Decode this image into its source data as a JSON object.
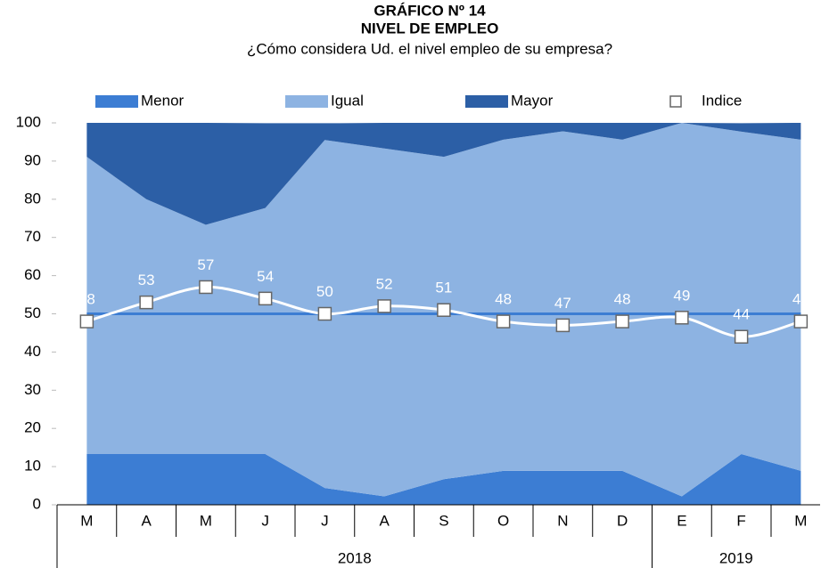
{
  "chart_data": {
    "type": "area",
    "stacked": true,
    "title": "GRÁFICO Nº 14",
    "subtitle": "NIVEL DE EMPLEO",
    "question": "¿Cómo considera Ud. el nivel empleo de su empresa?",
    "categories": [
      "M",
      "A",
      "M",
      "J",
      "J",
      "A",
      "S",
      "O",
      "N",
      "D",
      "E",
      "F",
      "M"
    ],
    "category_groups": [
      {
        "label": "2018",
        "span": 10
      },
      {
        "label": "2019",
        "span": 3
      }
    ],
    "series": [
      {
        "name": "Menor",
        "color": "#3c7dd3",
        "values": [
          13.3,
          13.3,
          13.3,
          13.3,
          4.4,
          2.2,
          6.7,
          8.9,
          8.9,
          8.9,
          2.2,
          13.3,
          8.9
        ]
      },
      {
        "name": "Igual",
        "color": "#8db3e2",
        "values": [
          77.8,
          66.7,
          60,
          64.4,
          91.1,
          91.1,
          84.4,
          86.7,
          88.9,
          86.7,
          97.8,
          84.4,
          86.7
        ]
      },
      {
        "name": "Mayor",
        "color": "#2c5fa6",
        "values": [
          8.9,
          20,
          26.7,
          22.2,
          4.4,
          6.7,
          8.9,
          4.4,
          2.2,
          4.4,
          0,
          2.2,
          4.4
        ]
      },
      {
        "name": "Indice",
        "type": "line",
        "color": "#ffffff",
        "values": [
          48,
          53,
          57,
          54,
          50,
          52,
          51,
          48,
          47,
          48,
          49,
          44,
          48
        ]
      }
    ],
    "reference_line": {
      "value": 50,
      "color": "#3c7dd3"
    },
    "ylim": [
      0,
      100
    ],
    "yticks": [
      0,
      10,
      20,
      30,
      40,
      50,
      60,
      70,
      80,
      90,
      100
    ],
    "grid": false,
    "legend": "top"
  }
}
